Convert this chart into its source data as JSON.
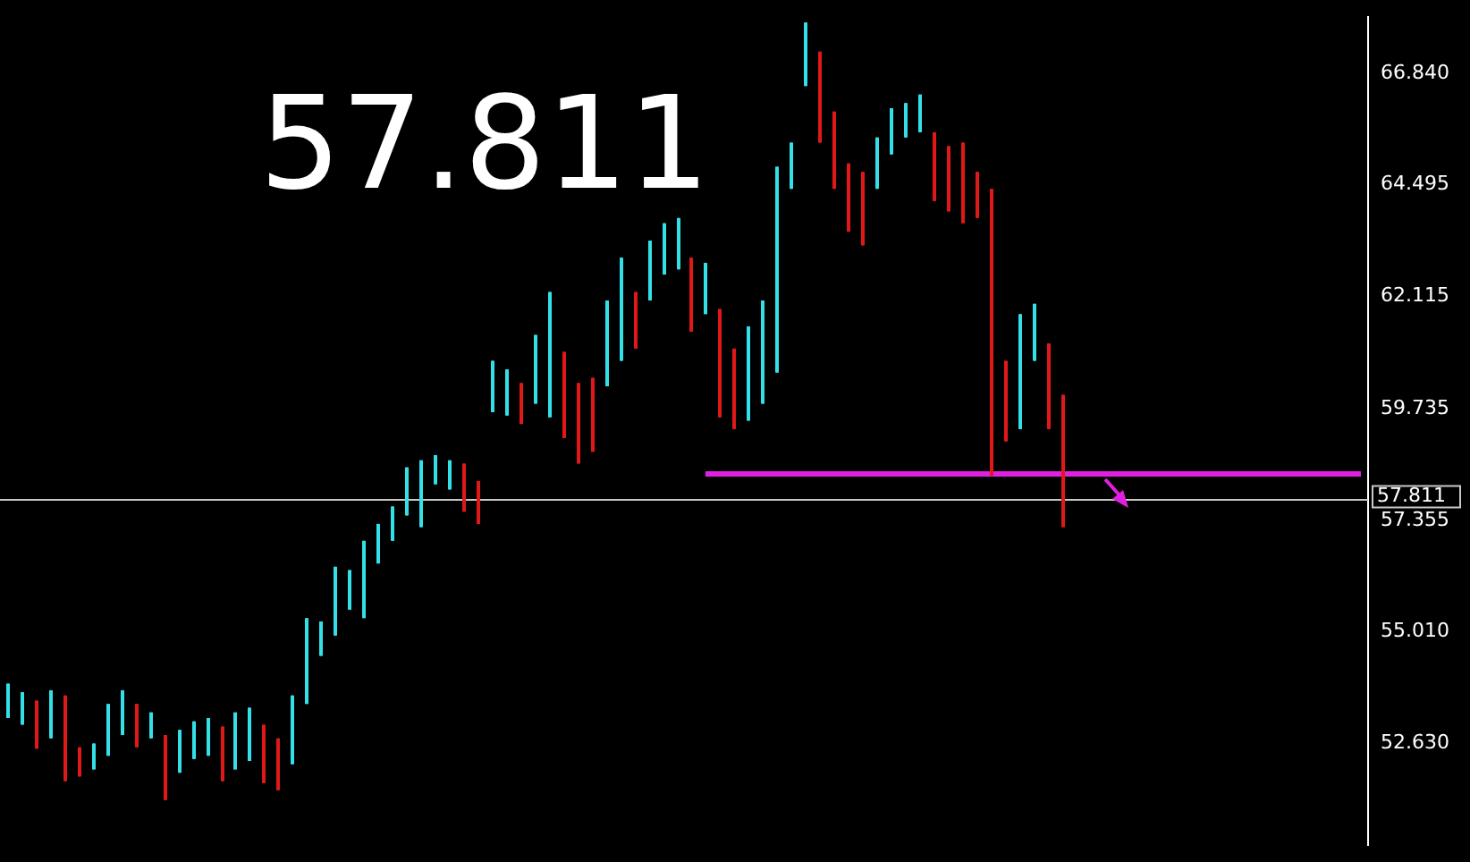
{
  "chart_data": {
    "type": "candlestick",
    "categories": [
      null,
      null,
      null,
      null,
      null,
      null,
      null,
      null,
      null,
      null,
      null,
      null,
      null,
      null,
      null,
      null,
      null,
      null,
      null,
      null,
      null,
      null,
      null,
      null,
      null,
      null,
      null,
      null,
      null,
      null,
      null,
      null,
      null,
      null,
      null,
      null,
      null,
      null,
      null,
      null,
      null,
      null,
      null,
      null,
      null,
      null,
      null,
      null,
      null,
      null,
      null,
      null,
      null,
      null,
      null,
      null,
      null,
      null,
      null,
      null,
      null,
      null,
      null,
      null,
      null,
      null,
      null,
      null,
      null,
      null,
      null,
      null,
      null,
      null,
      null,
      null,
      null,
      null,
      null,
      null,
      null,
      null,
      null,
      null,
      null,
      null,
      null,
      null,
      null,
      null,
      null,
      null,
      null,
      null,
      null,
      null
    ],
    "ohlc": [
      [
        53.17,
        53.9,
        53.17,
        53.9
      ],
      [
        53.03,
        53.72,
        53.03,
        53.72
      ],
      [
        53.54,
        53.54,
        52.52,
        52.52
      ],
      [
        52.74,
        53.76,
        52.74,
        53.76
      ],
      [
        53.65,
        53.65,
        51.83,
        51.83
      ],
      [
        52.55,
        52.55,
        51.93,
        51.93
      ],
      [
        52.08,
        52.63,
        52.08,
        52.63
      ],
      [
        52.37,
        53.47,
        52.37,
        53.47
      ],
      [
        52.81,
        53.76,
        52.81,
        53.76
      ],
      [
        53.47,
        53.47,
        52.55,
        52.55
      ],
      [
        52.74,
        53.29,
        52.74,
        53.29
      ],
      [
        52.81,
        52.81,
        51.43,
        51.43
      ],
      [
        52.01,
        52.92,
        52.01,
        52.92
      ],
      [
        52.3,
        53.1,
        52.3,
        53.1
      ],
      [
        52.37,
        53.17,
        52.37,
        53.17
      ],
      [
        52.99,
        52.99,
        51.83,
        51.83
      ],
      [
        52.08,
        53.29,
        52.08,
        53.29
      ],
      [
        52.26,
        53.39,
        52.26,
        53.39
      ],
      [
        53.03,
        53.03,
        51.79,
        51.79
      ],
      [
        52.74,
        52.74,
        51.64,
        51.64
      ],
      [
        52.19,
        53.65,
        52.19,
        53.65
      ],
      [
        53.47,
        55.29,
        53.47,
        55.29
      ],
      [
        54.49,
        55.22,
        54.49,
        55.22
      ],
      [
        54.92,
        56.38,
        54.92,
        56.38
      ],
      [
        55.47,
        56.31,
        55.47,
        56.31
      ],
      [
        55.29,
        56.93,
        55.29,
        56.93
      ],
      [
        56.45,
        57.29,
        56.45,
        57.29
      ],
      [
        56.93,
        57.66,
        56.93,
        57.66
      ],
      [
        57.47,
        58.49,
        57.47,
        58.49
      ],
      [
        57.22,
        58.64,
        57.22,
        58.64
      ],
      [
        58.13,
        58.75,
        58.13,
        58.75
      ],
      [
        58.02,
        58.64,
        58.02,
        58.64
      ],
      [
        58.57,
        58.57,
        57.55,
        57.55
      ],
      [
        58.2,
        58.2,
        57.29,
        57.29
      ],
      [
        59.66,
        60.75,
        59.66,
        60.75
      ],
      [
        59.59,
        60.57,
        59.59,
        60.57
      ],
      [
        60.28,
        60.28,
        59.41,
        59.41
      ],
      [
        59.84,
        61.3,
        59.84,
        61.3
      ],
      [
        59.55,
        62.21,
        59.55,
        62.21
      ],
      [
        60.94,
        60.94,
        59.11,
        59.11
      ],
      [
        60.28,
        60.28,
        58.57,
        58.57
      ],
      [
        60.39,
        60.39,
        58.82,
        58.82
      ],
      [
        60.21,
        62.03,
        60.21,
        62.03
      ],
      [
        60.75,
        62.94,
        60.75,
        62.94
      ],
      [
        62.21,
        62.21,
        61.01,
        61.01
      ],
      [
        62.03,
        63.3,
        62.03,
        63.3
      ],
      [
        62.58,
        63.67,
        62.58,
        63.67
      ],
      [
        62.69,
        63.78,
        62.69,
        63.78
      ],
      [
        62.94,
        62.94,
        61.37,
        61.37
      ],
      [
        61.74,
        62.83,
        61.74,
        62.83
      ],
      [
        61.85,
        61.85,
        59.55,
        59.55
      ],
      [
        61.01,
        61.01,
        59.3,
        59.3
      ],
      [
        59.48,
        61.48,
        59.48,
        61.48
      ],
      [
        59.84,
        62.03,
        59.84,
        62.03
      ],
      [
        60.5,
        64.87,
        60.5,
        64.87
      ],
      [
        64.4,
        65.38,
        64.4,
        65.38
      ],
      [
        66.58,
        67.93,
        66.58,
        67.93
      ],
      [
        67.31,
        67.31,
        65.38,
        65.38
      ],
      [
        66.04,
        66.04,
        64.4,
        64.4
      ],
      [
        64.94,
        64.94,
        63.49,
        63.49
      ],
      [
        64.76,
        64.76,
        63.2,
        63.2
      ],
      [
        64.4,
        65.49,
        64.4,
        65.49
      ],
      [
        65.13,
        66.11,
        65.13,
        66.11
      ],
      [
        65.49,
        66.22,
        65.49,
        66.22
      ],
      [
        65.6,
        66.4,
        65.6,
        66.4
      ],
      [
        65.6,
        65.6,
        64.14,
        64.14
      ],
      [
        65.31,
        65.31,
        63.92,
        63.92
      ],
      [
        65.38,
        65.38,
        63.67,
        63.67
      ],
      [
        64.76,
        64.76,
        63.78,
        63.78
      ],
      [
        64.4,
        64.4,
        58.31,
        58.31
      ],
      [
        60.75,
        60.75,
        59.04,
        59.04
      ],
      [
        59.3,
        61.74,
        59.3,
        61.74
      ],
      [
        60.75,
        61.96,
        60.75,
        61.96
      ],
      [
        61.12,
        61.12,
        59.3,
        59.3
      ],
      [
        60.03,
        60.03,
        57.22,
        57.22
      ],
      null,
      null,
      null,
      null,
      null,
      null,
      null,
      null,
      null,
      null,
      null,
      null,
      null,
      null,
      null,
      null,
      null,
      null,
      null,
      null,
      null
    ],
    "colors": [
      "#33e0e8",
      "#33e0e8",
      "#e01818",
      "#33e0e8",
      "#e01818",
      "#e01818",
      "#33e0e8",
      "#33e0e8",
      "#33e0e8",
      "#e01818",
      "#33e0e8",
      "#e01818",
      "#33e0e8",
      "#33e0e8",
      "#33e0e8",
      "#e01818",
      "#33e0e8",
      "#33e0e8",
      "#e01818",
      "#e01818",
      "#33e0e8",
      "#33e0e8",
      "#33e0e8",
      "#33e0e8",
      "#33e0e8",
      "#33e0e8",
      "#33e0e8",
      "#33e0e8",
      "#33e0e8",
      "#33e0e8",
      "#33e0e8",
      "#33e0e8",
      "#e01818",
      "#e01818",
      "#33e0e8",
      "#33e0e8",
      "#e01818",
      "#33e0e8",
      "#33e0e8",
      "#e01818",
      "#e01818",
      "#e01818",
      "#33e0e8",
      "#33e0e8",
      "#e01818",
      "#33e0e8",
      "#33e0e8",
      "#33e0e8",
      "#e01818",
      "#33e0e8",
      "#e01818",
      "#e01818",
      "#33e0e8",
      "#33e0e8",
      "#33e0e8",
      "#33e0e8",
      "#33e0e8",
      "#e01818",
      "#e01818",
      "#e01818",
      "#e01818",
      "#33e0e8",
      "#33e0e8",
      "#33e0e8",
      "#33e0e8",
      "#e01818",
      "#e01818",
      "#e01818",
      "#e01818",
      "#e01818",
      "#e01818",
      "#33e0e8",
      "#33e0e8",
      "#e01818",
      "#e01818",
      null,
      null,
      null,
      null,
      null,
      null,
      null,
      null,
      null,
      null,
      null,
      null,
      null,
      null,
      null,
      null,
      null,
      null,
      null,
      null,
      null
    ],
    "series": [
      {
        "type": "line",
        "color": "#e020e0",
        "values": [
          null,
          null,
          null,
          null,
          null,
          null,
          null,
          null,
          null,
          null,
          null,
          null,
          null,
          null,
          null,
          null,
          null,
          null,
          null,
          null,
          null,
          null,
          null,
          null,
          null,
          null,
          null,
          null,
          null,
          null,
          null,
          null,
          null,
          null,
          null,
          null,
          null,
          null,
          null,
          null,
          null,
          null,
          null,
          null,
          null,
          null,
          null,
          null,
          null,
          58.35,
          58.35,
          58.35,
          58.35,
          58.35,
          58.35,
          58.35,
          58.35,
          58.35,
          58.35,
          58.35,
          58.35,
          58.35,
          58.35,
          58.35,
          58.35,
          58.35,
          58.35,
          58.35,
          58.35,
          58.35,
          58.35,
          58.35,
          58.35,
          58.35,
          58.35,
          58.35,
          58.35,
          58.35,
          58.35,
          58.35,
          58.35,
          58.35,
          58.35,
          58.35,
          58.35,
          58.35,
          58.35,
          58.35,
          58.35,
          58.35,
          58.35,
          58.35,
          58.35,
          58.35,
          58.35,
          58.35
        ]
      }
    ],
    "ylim": [
      50.48,
      68.042
    ],
    "yticks": [
      {
        "value": 66.84,
        "label": "66.840"
      },
      {
        "value": 64.495,
        "label": "64.495"
      },
      {
        "value": 62.115,
        "label": "62.115"
      },
      {
        "value": 59.735,
        "label": "59.735"
      },
      {
        "value": 57.355,
        "label": "57.355"
      },
      {
        "value": 55.01,
        "label": "55.010"
      },
      {
        "value": 52.63,
        "label": "52.630"
      }
    ],
    "ref_lines": [
      {
        "axis": "y",
        "value": 57.811,
        "label": "57.811",
        "color": "#c8c8c8"
      }
    ],
    "annotations": [
      "57.811"
    ],
    "tick_labels": "y",
    "grid": false,
    "legend": false,
    "marker": "none"
  }
}
